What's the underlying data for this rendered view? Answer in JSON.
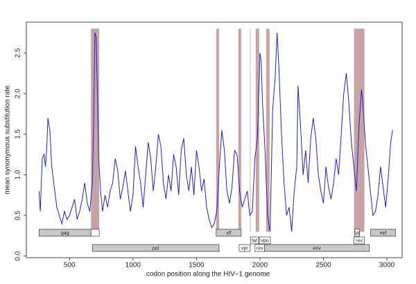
{
  "chart_data": {
    "type": "line",
    "xlabel": "codon position along the HIV−1 genome",
    "ylabel": "mean synonymous substitution rate",
    "xlim": [
      160,
      3120
    ],
    "ylim": [
      -0.02,
      2.88
    ],
    "xticks": [
      500,
      1000,
      1500,
      2000,
      2500,
      3000
    ],
    "yticks": [
      {
        "value": 0,
        "label": "0.0"
      },
      0.5,
      {
        "value": 1,
        "label": "1.0"
      },
      1.5,
      {
        "value": 2,
        "label": "2.0"
      },
      2.5
    ],
    "color": "#1f1fcf",
    "x": [
      260,
      270,
      285,
      300,
      310,
      320,
      330,
      345,
      360,
      380,
      400,
      420,
      440,
      460,
      480,
      500,
      520,
      540,
      560,
      580,
      600,
      620,
      640,
      660,
      680,
      690,
      700,
      710,
      720,
      730,
      745,
      760,
      780,
      800,
      820,
      840,
      860,
      880,
      900,
      920,
      940,
      960,
      980,
      1000,
      1020,
      1040,
      1060,
      1080,
      1100,
      1120,
      1140,
      1160,
      1180,
      1200,
      1220,
      1240,
      1260,
      1280,
      1300,
      1320,
      1340,
      1360,
      1380,
      1400,
      1420,
      1440,
      1460,
      1480,
      1500,
      1520,
      1540,
      1560,
      1580,
      1600,
      1620,
      1640,
      1660,
      1680,
      1700,
      1720,
      1740,
      1760,
      1780,
      1800,
      1820,
      1840,
      1860,
      1880,
      1900,
      1920,
      1940,
      1960,
      1980,
      2000,
      2010,
      2020,
      2040,
      2060,
      2080,
      2100,
      2120,
      2135,
      2150,
      2170,
      2190,
      2210,
      2230,
      2250,
      2270,
      2290,
      2300,
      2320,
      2340,
      2360,
      2380,
      2400,
      2420,
      2440,
      2460,
      2480,
      2500,
      2520,
      2540,
      2560,
      2580,
      2600,
      2620,
      2640,
      2660,
      2680,
      2700,
      2720,
      2740,
      2760,
      2780,
      2800,
      2810,
      2830,
      2850,
      2870,
      2890,
      2910,
      2930,
      2950,
      2970,
      2990,
      3010,
      3030,
      3045
    ],
    "values": [
      0.8,
      0.55,
      1.2,
      1.25,
      1.1,
      1.3,
      1.7,
      1.55,
      1.1,
      0.85,
      0.6,
      0.5,
      0.4,
      0.55,
      0.45,
      0.5,
      0.6,
      0.7,
      0.45,
      0.55,
      0.7,
      0.9,
      0.65,
      0.55,
      0.9,
      1.6,
      2.75,
      2.7,
      2.0,
      1.2,
      0.8,
      0.55,
      0.75,
      0.6,
      0.8,
      0.9,
      1.2,
      1.05,
      0.7,
      0.85,
      1.05,
      0.8,
      0.55,
      0.75,
      1.35,
      1.1,
      0.9,
      0.6,
      1.0,
      1.4,
      1.2,
      0.8,
      1.1,
      1.5,
      1.35,
      0.9,
      0.7,
      1.0,
      0.8,
      1.25,
      1.1,
      0.75,
      1.3,
      1.45,
      1.0,
      0.8,
      1.1,
      0.75,
      1.3,
      1.1,
      0.8,
      0.95,
      0.6,
      0.45,
      0.35,
      0.4,
      0.55,
      1.1,
      1.55,
      1.3,
      0.8,
      0.65,
      0.85,
      1.3,
      1.25,
      0.8,
      0.6,
      0.7,
      0.8,
      0.5,
      0.55,
      1.2,
      1.45,
      2.5,
      2.4,
      1.9,
      1.3,
      0.5,
      0.3,
      1.8,
      2.2,
      2.75,
      2.3,
      1.5,
      0.9,
      0.5,
      0.6,
      0.3,
      0.8,
      1.1,
      2.1,
      1.6,
      1.0,
      1.3,
      0.9,
      1.45,
      1.7,
      1.45,
      1.0,
      0.8,
      0.65,
      1.1,
      0.85,
      0.7,
      0.9,
      1.2,
      1.0,
      1.5,
      2.0,
      2.25,
      1.9,
      1.4,
      1.1,
      0.8,
      1.6,
      2.05,
      1.9,
      1.4,
      1.1,
      0.8,
      0.5,
      0.55,
      0.75,
      1.1,
      0.85,
      0.6,
      0.95,
      1.4,
      1.55
    ],
    "highlight_ylim": [
      0.3,
      2.8
    ],
    "highlights": [
      {
        "start": 669,
        "end": 734,
        "color": "#c9a3a3"
      },
      {
        "start": 1655,
        "end": 1678,
        "color": "#c9a3a3"
      },
      {
        "start": 1830,
        "end": 1852,
        "color": "#c9a3a3"
      },
      {
        "start": 1918,
        "end": 1929,
        "color": "#ead8d8"
      },
      {
        "start": 1967,
        "end": 1994,
        "color": "#c9a3a3"
      },
      {
        "start": 2049,
        "end": 2076,
        "color": "#c9a3a3"
      },
      {
        "start": 2741,
        "end": 2823,
        "color": "#c9a3a3"
      }
    ],
    "genes": [
      {
        "label": "gag",
        "start": 260,
        "end": 669,
        "track": 0,
        "color": "#c8c8c8"
      },
      {
        "start": 669,
        "end": 734,
        "track": 0,
        "color": "#ffffff"
      },
      {
        "label": "vif",
        "start": 1655,
        "end": 1852,
        "track": 0,
        "color": "#c8c8c8"
      },
      {
        "label": "tat",
        "start": 2746,
        "end": 2785,
        "track": 0,
        "color": "#ffffff"
      },
      {
        "label": "nef",
        "start": 2872,
        "end": 3068,
        "track": 0,
        "color": "#c8c8c8"
      },
      {
        "label": "tat",
        "start": 1925,
        "end": 1990,
        "track": 1,
        "color": "#ffffff"
      },
      {
        "label": "vpu",
        "start": 1995,
        "end": 2082,
        "track": 1,
        "color": "#ffffff"
      },
      {
        "label": "rev",
        "start": 2741,
        "end": 2823,
        "track": 1,
        "color": "#ffffff"
      },
      {
        "label": "pol",
        "start": 680,
        "end": 1678,
        "track": 2,
        "color": "#c8c8c8"
      },
      {
        "label": "vpr",
        "start": 1836,
        "end": 1923,
        "track": 2,
        "color": "#ffffff"
      },
      {
        "label": "rev",
        "start": 1961,
        "end": 2037,
        "track": 2,
        "color": "#ffffff"
      },
      {
        "label": "env",
        "start": 2037,
        "end": 2861,
        "track": 2,
        "color": "#c8c8c8"
      }
    ]
  }
}
